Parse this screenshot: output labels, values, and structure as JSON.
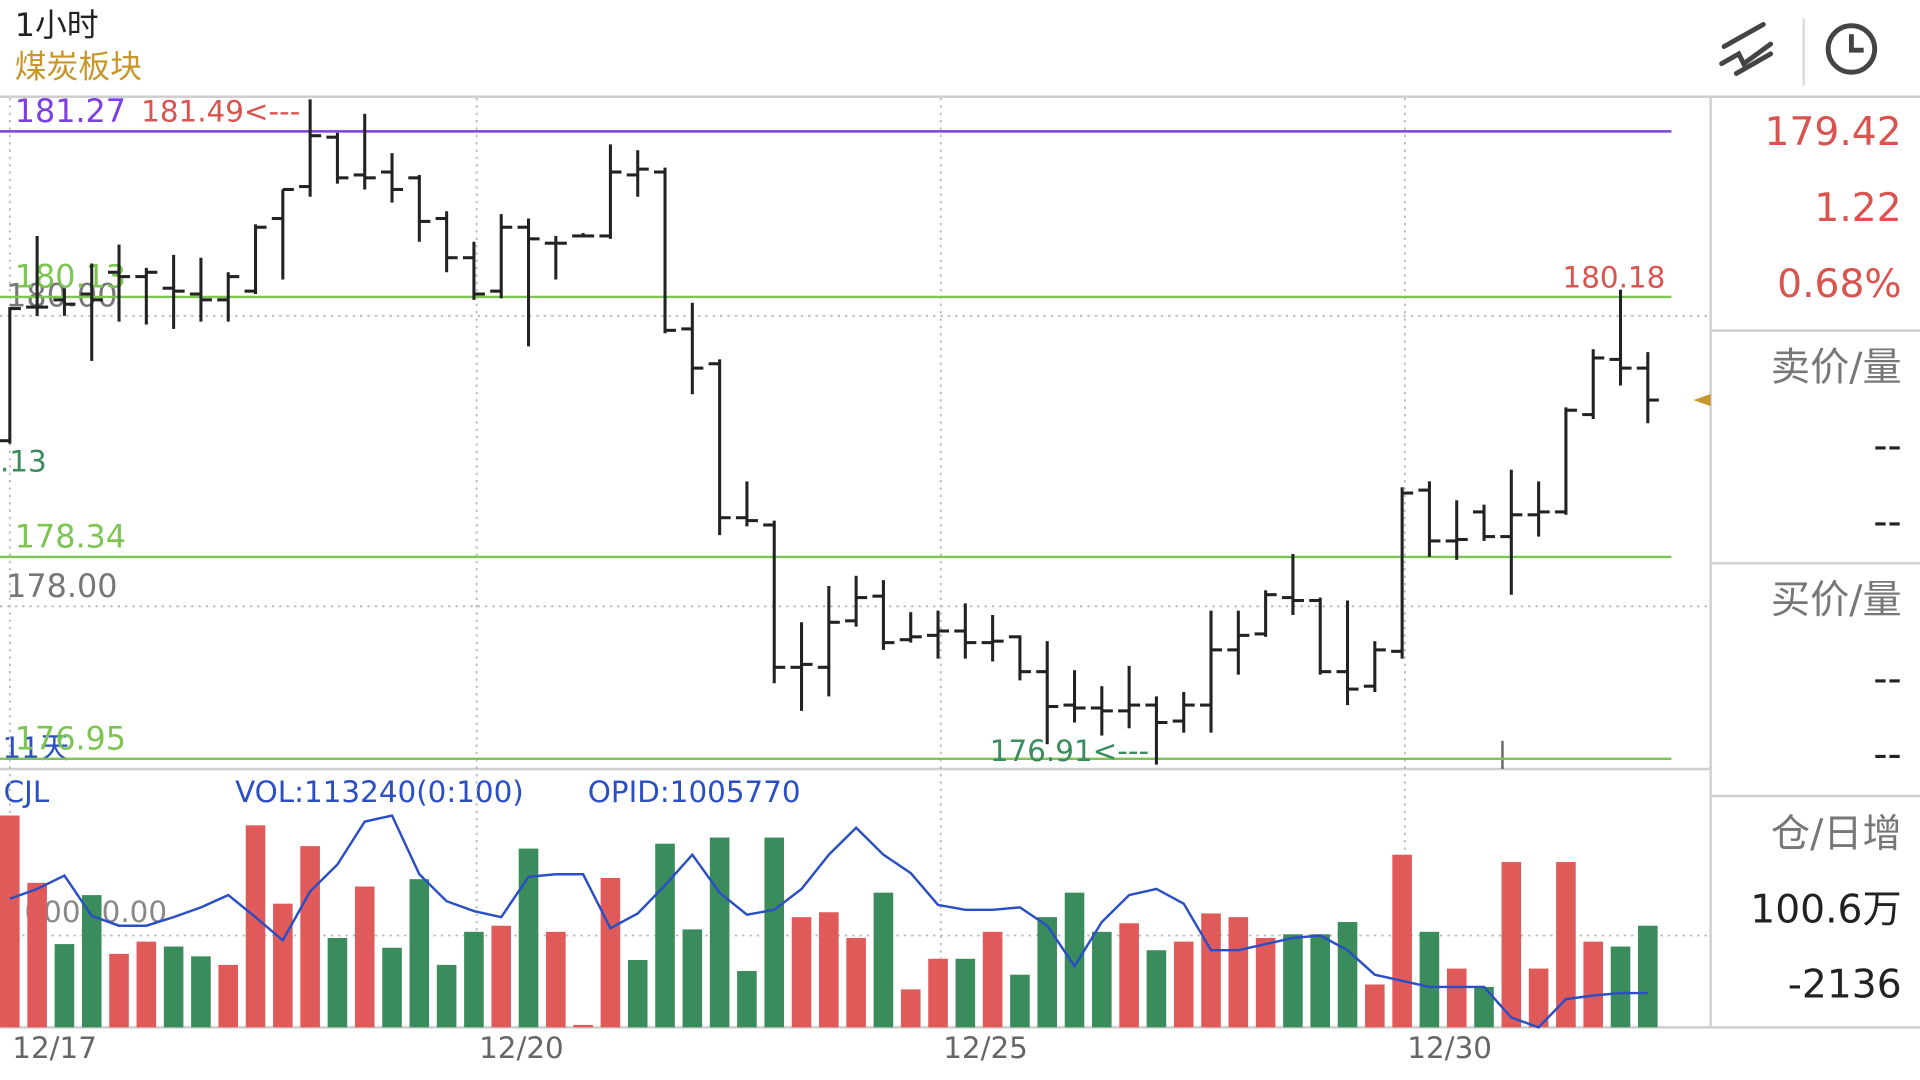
{
  "header": {
    "period": "1小时",
    "sector": "煤炭板块"
  },
  "sidebar": {
    "price": "179.42",
    "change": "1.22",
    "percent": "0.68%",
    "ask_label": "卖价/量",
    "ask_price": "--",
    "ask_volume": "--",
    "bid_label": "买价/量",
    "bid_price": "--",
    "bid_volume": "--",
    "oi_label": "仓/日增",
    "open_interest": "100.6万",
    "daily_change": "-2136"
  },
  "chart_data": [
    {
      "type": "ohlc",
      "color": "#222222",
      "open": [
        179.14,
        180.06,
        180.11,
        180.15,
        180.3,
        180.27,
        180.19,
        180.15,
        180.11,
        180.17,
        180.67,
        180.89,
        181.23,
        180.97,
        180.99,
        180.95,
        180.67,
        180.4,
        180.17,
        180.61,
        180.5,
        180.55,
        180.55,
        180.97,
        180.99,
        179.91,
        179.67,
        178.61,
        178.56,
        177.58,
        177.58,
        177.9,
        178.07,
        177.77,
        177.8,
        177.83,
        177.75,
        177.79,
        177.55,
        177.32,
        177.3,
        177.28,
        177.32,
        177.21,
        177.32,
        177.7,
        177.81,
        178.06,
        178.04,
        177.55,
        177.45,
        177.69,
        178.8,
        178.45,
        178.65,
        178.48,
        178.63,
        178.65,
        179.32,
        179.7,
        179.64
      ],
      "high": [
        180.06,
        180.55,
        180.19,
        180.36,
        180.49,
        180.33,
        180.42,
        180.4,
        180.3,
        180.63,
        180.87,
        181.49,
        181.26,
        181.39,
        181.12,
        180.97,
        180.72,
        180.51,
        180.7,
        180.67,
        180.55,
        180.57,
        181.18,
        181.14,
        181.02,
        180.09,
        179.7,
        178.86,
        178.59,
        177.89,
        178.14,
        178.21,
        178.18,
        177.96,
        177.97,
        178.02,
        177.94,
        177.8,
        177.76,
        177.56,
        177.45,
        177.59,
        177.38,
        177.41,
        177.97,
        177.97,
        178.11,
        178.36,
        178.06,
        178.04,
        177.76,
        178.82,
        178.86,
        178.73,
        178.7,
        178.94,
        178.86,
        179.37,
        179.77,
        180.18,
        179.75
      ],
      "low": [
        179.12,
        180.0,
        180.0,
        179.69,
        179.96,
        179.94,
        179.91,
        179.96,
        179.96,
        180.15,
        180.25,
        180.82,
        180.91,
        180.87,
        180.78,
        180.51,
        180.3,
        180.11,
        180.12,
        179.79,
        180.25,
        180.54,
        180.53,
        180.82,
        179.88,
        179.46,
        178.49,
        178.55,
        177.47,
        177.28,
        177.38,
        177.86,
        177.7,
        177.75,
        177.64,
        177.64,
        177.62,
        177.49,
        177.05,
        177.2,
        177.11,
        177.16,
        176.91,
        177.13,
        177.13,
        177.53,
        177.79,
        177.94,
        177.53,
        177.32,
        177.41,
        177.64,
        178.34,
        178.32,
        178.45,
        178.08,
        178.48,
        178.63,
        179.29,
        179.52,
        179.26
      ],
      "close": [
        180.05,
        180.06,
        180.08,
        180.11,
        180.27,
        180.3,
        180.17,
        180.11,
        180.27,
        180.61,
        180.87,
        181.24,
        180.95,
        180.95,
        180.87,
        180.65,
        180.4,
        180.15,
        180.61,
        180.53,
        180.5,
        180.55,
        180.99,
        181.01,
        179.9,
        179.64,
        178.61,
        178.59,
        177.58,
        177.6,
        177.89,
        178.06,
        177.75,
        177.79,
        177.83,
        177.75,
        177.76,
        177.55,
        177.31,
        177.3,
        177.28,
        177.32,
        177.2,
        177.32,
        177.7,
        177.8,
        178.08,
        178.04,
        177.55,
        177.43,
        177.7,
        178.78,
        178.45,
        178.46,
        178.48,
        178.63,
        178.65,
        179.35,
        179.71,
        179.64,
        179.42
      ],
      "xlim": [
        -0.36,
        62.3
      ],
      "ylim": [
        176.88,
        181.5
      ],
      "xticks": [
        {
          "value": 0,
          "label": "12/17"
        },
        {
          "value": 17.1,
          "label": "12/20"
        },
        {
          "value": 34.1,
          "label": "12/25"
        },
        {
          "value": 51.1,
          "label": "12/30"
        }
      ],
      "yticks": [
        {
          "value": 180,
          "label": "180.00"
        },
        {
          "value": 178,
          "label": "178.00"
        }
      ],
      "lines": [
        {
          "value": 181.27,
          "label": "181.27",
          "color": "#7d3fe0"
        },
        {
          "value": 180.13,
          "label": "180.13",
          "color": "#7cc552"
        },
        {
          "value": 178.34,
          "label": "178.34",
          "color": "#7cc552"
        },
        {
          "value": 176.95,
          "label": "176.95",
          "color": "#7cc552"
        }
      ],
      "annotations": {
        "high": "181.49<---",
        "low": "176.91<---",
        "recent_high": "180.18",
        "partial": ".13",
        "days": "11天"
      },
      "last_color": "#c8962a"
    },
    {
      "type": "bar",
      "title": "CJL",
      "vol_label": "VOL:113240(0:100)",
      "opid_label": "OPID:1005770",
      "axis_labels": [
        "000",
        "0.00"
      ],
      "values": [
        173,
        118,
        68,
        108,
        60,
        70,
        66,
        58,
        51,
        165,
        101,
        148,
        73,
        115,
        65,
        121,
        51,
        78,
        83,
        146,
        78,
        2,
        122,
        55,
        150,
        80,
        155,
        46,
        155,
        90,
        94,
        73,
        110,
        31,
        56,
        56,
        78,
        43,
        90,
        110,
        78,
        85,
        63,
        70,
        93,
        90,
        73,
        76,
        76,
        86,
        35,
        141,
        78,
        48,
        33,
        135,
        48,
        135,
        70,
        66,
        83
      ],
      "colors": [
        "r",
        "r",
        "g",
        "g",
        "r",
        "r",
        "g",
        "g",
        "r",
        "r",
        "r",
        "r",
        "g",
        "r",
        "g",
        "g",
        "g",
        "g",
        "r",
        "g",
        "r",
        "r",
        "r",
        "g",
        "g",
        "g",
        "g",
        "g",
        "g",
        "r",
        "r",
        "r",
        "g",
        "r",
        "r",
        "g",
        "r",
        "g",
        "g",
        "g",
        "g",
        "r",
        "g",
        "r",
        "r",
        "r",
        "r",
        "g",
        "g",
        "g",
        "r",
        "r",
        "g",
        "r",
        "g",
        "r",
        "r",
        "r",
        "r",
        "g",
        "g"
      ],
      "palette": {
        "r": "#e05a5a",
        "g": "#3a8c5c"
      },
      "line": {
        "color": "#2a4fc4",
        "values": [
          105,
          113,
          124,
          91,
          83,
          83,
          90,
          98,
          108,
          90,
          71,
          111,
          133,
          168,
          173,
          125,
          103,
          95,
          90,
          123,
          125,
          125,
          81,
          93,
          116,
          141,
          110,
          92,
          96,
          113,
          141,
          163,
          141,
          126,
          100,
          96,
          96,
          98,
          83,
          50,
          86,
          108,
          113,
          101,
          63,
          63,
          68,
          73,
          75,
          63,
          43,
          38,
          33,
          33,
          33,
          8,
          0,
          23,
          26,
          28,
          28
        ]
      },
      "ylim": [
        0,
        200
      ]
    }
  ]
}
